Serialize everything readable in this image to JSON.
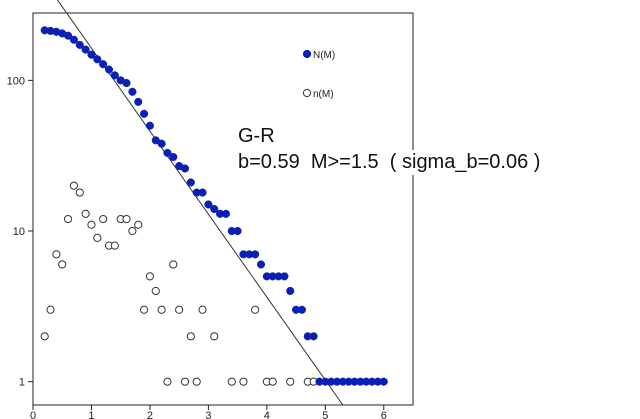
{
  "chart_data": {
    "type": "scatter",
    "title": "",
    "xlabel": "",
    "ylabel": "",
    "x_scale": "linear",
    "y_scale": "log",
    "xlim": [
      0,
      6.5
    ],
    "ylim": [
      0.7,
      280
    ],
    "x_ticks": [
      "0",
      "1",
      "2",
      "3",
      "4",
      "5",
      "6"
    ],
    "y_ticks": [
      "1",
      "10",
      "100"
    ],
    "grid": false,
    "legend_position": "top-right",
    "series": [
      {
        "name": "N(M)",
        "marker": "filled-circle",
        "color": "#0a1fb4",
        "points": [
          [
            0.2,
            215
          ],
          [
            0.3,
            213
          ],
          [
            0.4,
            210
          ],
          [
            0.5,
            205
          ],
          [
            0.6,
            198
          ],
          [
            0.7,
            186
          ],
          [
            0.8,
            172
          ],
          [
            0.9,
            160
          ],
          [
            1.0,
            148
          ],
          [
            1.1,
            138
          ],
          [
            1.2,
            128
          ],
          [
            1.3,
            118
          ],
          [
            1.4,
            108
          ],
          [
            1.5,
            100
          ],
          [
            1.6,
            96
          ],
          [
            1.7,
            84
          ],
          [
            1.8,
            72
          ],
          [
            1.9,
            60
          ],
          [
            2.0,
            50
          ],
          [
            2.1,
            40
          ],
          [
            2.2,
            38
          ],
          [
            2.3,
            33
          ],
          [
            2.4,
            31
          ],
          [
            2.5,
            27
          ],
          [
            2.6,
            26
          ],
          [
            2.7,
            21
          ],
          [
            2.8,
            18
          ],
          [
            2.9,
            18
          ],
          [
            3.0,
            15
          ],
          [
            3.1,
            14
          ],
          [
            3.2,
            13
          ],
          [
            3.3,
            13
          ],
          [
            3.4,
            10
          ],
          [
            3.5,
            10
          ],
          [
            3.6,
            7
          ],
          [
            3.7,
            7
          ],
          [
            3.8,
            7
          ],
          [
            3.9,
            6
          ],
          [
            4.0,
            5
          ],
          [
            4.1,
            5
          ],
          [
            4.2,
            5
          ],
          [
            4.3,
            5
          ],
          [
            4.4,
            4
          ],
          [
            4.5,
            3
          ],
          [
            4.6,
            3
          ],
          [
            4.7,
            2
          ],
          [
            4.8,
            2
          ],
          [
            4.9,
            1
          ],
          [
            5.0,
            1
          ],
          [
            5.1,
            1
          ],
          [
            5.2,
            1
          ],
          [
            5.3,
            1
          ],
          [
            5.4,
            1
          ],
          [
            5.5,
            1
          ],
          [
            5.6,
            1
          ],
          [
            5.7,
            1
          ],
          [
            5.8,
            1
          ],
          [
            5.9,
            1
          ],
          [
            6.0,
            1
          ]
        ]
      },
      {
        "name": "n(M)",
        "marker": "open-circle",
        "color": "#333333",
        "points": [
          [
            0.2,
            2
          ],
          [
            0.3,
            3
          ],
          [
            0.4,
            7
          ],
          [
            0.5,
            6
          ],
          [
            0.6,
            12
          ],
          [
            0.7,
            20
          ],
          [
            0.8,
            18
          ],
          [
            0.9,
            13
          ],
          [
            1.0,
            11
          ],
          [
            1.1,
            9
          ],
          [
            1.2,
            12
          ],
          [
            1.3,
            8
          ],
          [
            1.4,
            8
          ],
          [
            1.5,
            12
          ],
          [
            1.6,
            12
          ],
          [
            1.7,
            10
          ],
          [
            1.8,
            11
          ],
          [
            1.9,
            3
          ],
          [
            2.0,
            5
          ],
          [
            2.1,
            4
          ],
          [
            2.2,
            3
          ],
          [
            2.3,
            1
          ],
          [
            2.4,
            6
          ],
          [
            2.5,
            3
          ],
          [
            2.6,
            1
          ],
          [
            2.7,
            2
          ],
          [
            2.8,
            1
          ],
          [
            2.9,
            3
          ],
          [
            3.1,
            2
          ],
          [
            3.4,
            1
          ],
          [
            3.6,
            1
          ],
          [
            3.8,
            3
          ],
          [
            4.0,
            1
          ],
          [
            4.1,
            1
          ],
          [
            4.4,
            1
          ],
          [
            4.7,
            1
          ],
          [
            4.8,
            1
          ]
        ]
      }
    ],
    "fit_line": {
      "name": "G-R",
      "points": [
        [
          0.4,
          350
        ],
        [
          5.3,
          0.7
        ]
      ]
    },
    "annotations": [
      "G-R",
      "b=0.59  M>=1.5  ( sigma_b=0.06 )"
    ]
  }
}
